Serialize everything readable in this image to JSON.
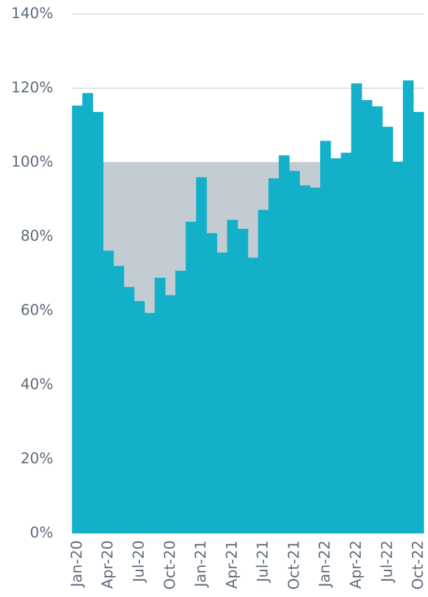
{
  "chart_data": {
    "type": "step-area",
    "categories": [
      "Jan-20",
      null,
      null,
      "Apr-20",
      null,
      null,
      "Jul-20",
      null,
      null,
      "Oct-20",
      null,
      null,
      "Jan-21",
      null,
      null,
      "Apr-21",
      null,
      null,
      "Jul-21",
      null,
      null,
      "Oct-21",
      null,
      null,
      "Jan-22",
      null,
      null,
      "Apr-22",
      null,
      null,
      "Jul-22",
      null,
      null,
      "Oct-22"
    ],
    "values": [
      115.3,
      118.7,
      113.6,
      76.2,
      72.1,
      66.4,
      62.6,
      59.4,
      68.9,
      64.2,
      70.8,
      84.0,
      96.0,
      80.9,
      75.7,
      84.5,
      82.1,
      74.3,
      87.2,
      95.7,
      101.9,
      97.7,
      93.8,
      93.2,
      105.8,
      101.1,
      102.6,
      121.3,
      116.8,
      115.1,
      109.6,
      100.2,
      122.1,
      113.6
    ],
    "color": "#12b1c9",
    "reference": 100,
    "reference_color": "#c3cbd3",
    "ylim": [
      0,
      140
    ],
    "yticks": [
      {
        "value": 0,
        "label": "0%"
      },
      {
        "value": 20,
        "label": "20%"
      },
      {
        "value": 40,
        "label": "40%"
      },
      {
        "value": 60,
        "label": "60%"
      },
      {
        "value": 80,
        "label": "80%"
      },
      {
        "value": 100,
        "label": "100%"
      },
      {
        "value": 120,
        "label": "120%"
      },
      {
        "value": 140,
        "label": "140%"
      }
    ],
    "grid": true
  }
}
